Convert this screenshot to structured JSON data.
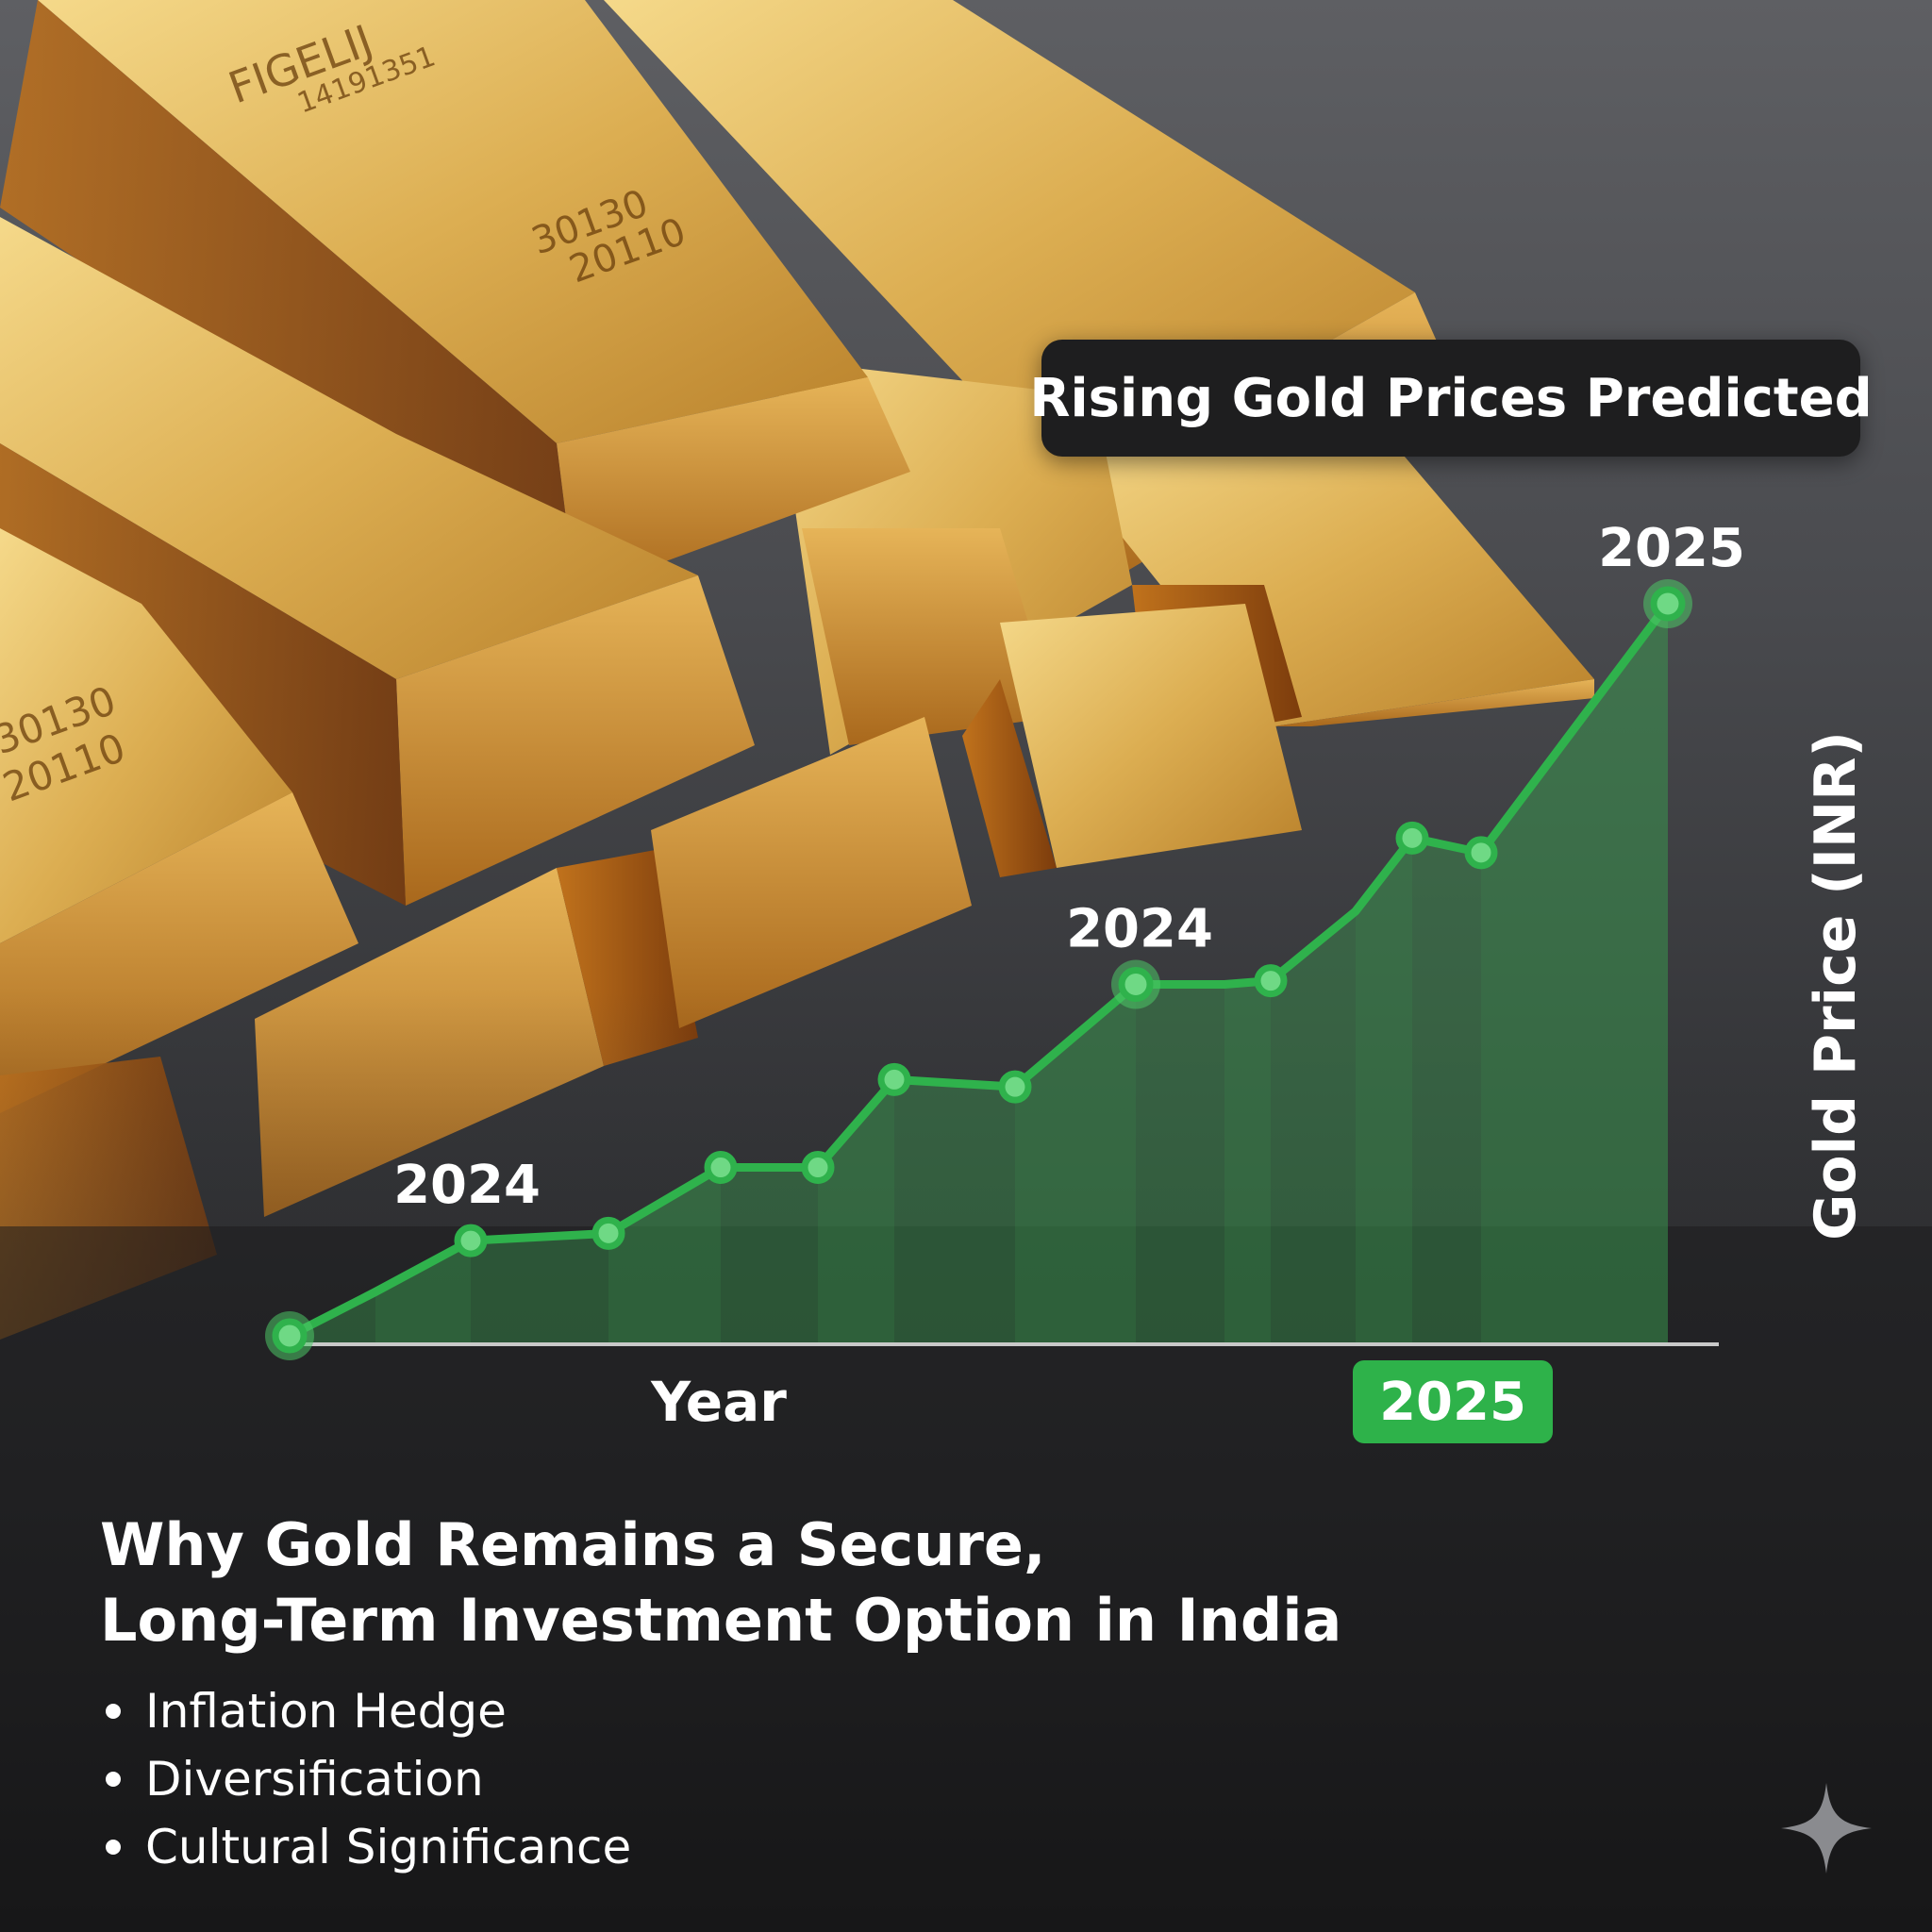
{
  "badge": {
    "text": "Rising Gold Prices Predicted"
  },
  "headline": {
    "line1": "Why Gold Remains a Secure,",
    "line2": "Long-Term Investment Option in India"
  },
  "bullets": [
    "Inflation Hedge",
    "Diversification",
    "Cultural Significance"
  ],
  "bar_engravings": {
    "top_left_a": "FIGELIJ",
    "top_left_b": "14191351",
    "top_left_c": "30130",
    "top_left_d": "20110",
    "left_a": "30130",
    "left_b": "20110"
  },
  "chart_data": {
    "type": "line",
    "title": "",
    "xlabel": "Year",
    "ylabel": "Gold Price (INR)",
    "x_badge": "2025",
    "fill": true,
    "grid": false,
    "legend": "none",
    "line_color": "#2fb24c",
    "area_color": "#3a9a4e",
    "ylim": [
      0,
      100
    ],
    "series": [
      {
        "values": [
          0,
          6,
          13,
          14,
          23,
          23,
          35,
          34,
          48,
          48,
          48.5,
          58,
          68,
          66,
          100
        ]
      }
    ],
    "annotations": [
      {
        "index": 2,
        "text": "2024"
      },
      {
        "index": 8,
        "text": "2024"
      },
      {
        "index": 14,
        "text": "2025"
      }
    ],
    "markers": [
      0,
      2,
      3,
      4,
      5,
      6,
      7,
      8,
      10,
      12,
      13,
      14
    ]
  },
  "icons": {
    "sparkle": "sparkle-icon"
  },
  "colors": {
    "accent_green": "#2eb24a",
    "gold": "#d9a441"
  }
}
